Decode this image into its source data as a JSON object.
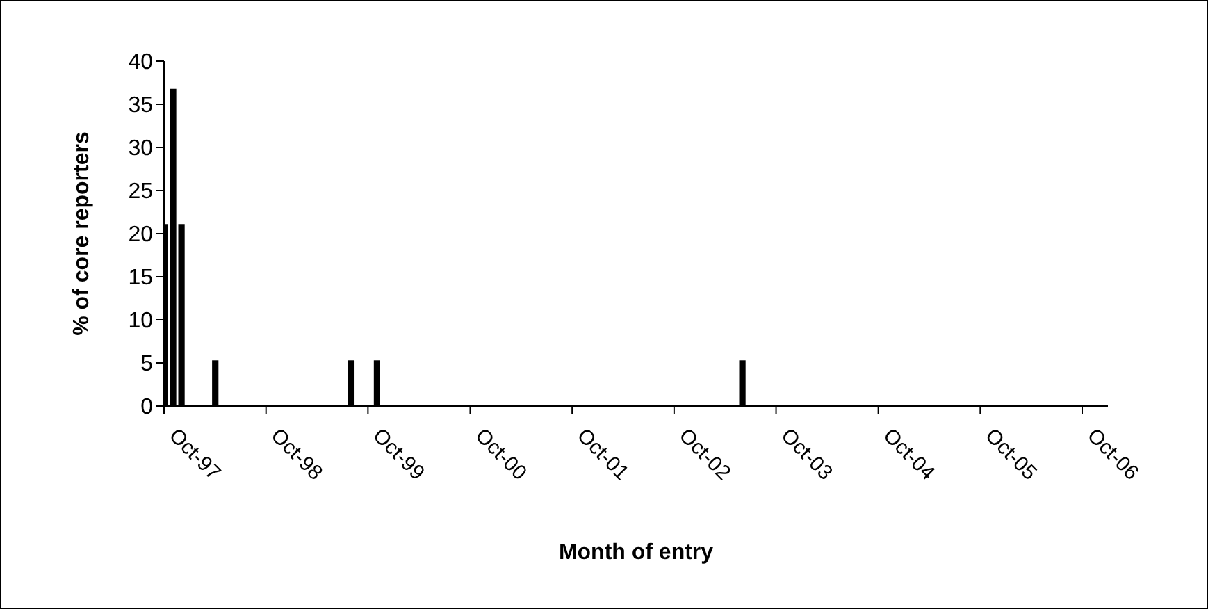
{
  "chart_data": {
    "type": "bar",
    "xlabel": "Month of entry",
    "ylabel": "% of core reporters",
    "x": [
      "1997-10",
      "1997-11",
      "1997-12",
      "1998-04",
      "1999-08",
      "1999-11",
      "2003-06"
    ],
    "values": [
      21.1,
      36.8,
      21.1,
      5.3,
      5.3,
      5.3,
      5.3
    ],
    "color": "#000000",
    "xlim": [
      "1997-10",
      "2007-01"
    ],
    "xticks": [
      {
        "value": "1997-10",
        "label": "Oct-97"
      },
      {
        "value": "1998-10",
        "label": "Oct-98"
      },
      {
        "value": "1999-10",
        "label": "Oct-99"
      },
      {
        "value": "2000-10",
        "label": "Oct-00"
      },
      {
        "value": "2001-10",
        "label": "Oct-01"
      },
      {
        "value": "2002-10",
        "label": "Oct-02"
      },
      {
        "value": "2003-10",
        "label": "Oct-03"
      },
      {
        "value": "2004-10",
        "label": "Oct-04"
      },
      {
        "value": "2005-10",
        "label": "Oct-05"
      },
      {
        "value": "2006-10",
        "label": "Oct-06"
      }
    ],
    "ylim": [
      0,
      40
    ],
    "yticks": [
      0,
      5,
      10,
      15,
      20,
      25,
      30,
      35,
      40
    ]
  }
}
